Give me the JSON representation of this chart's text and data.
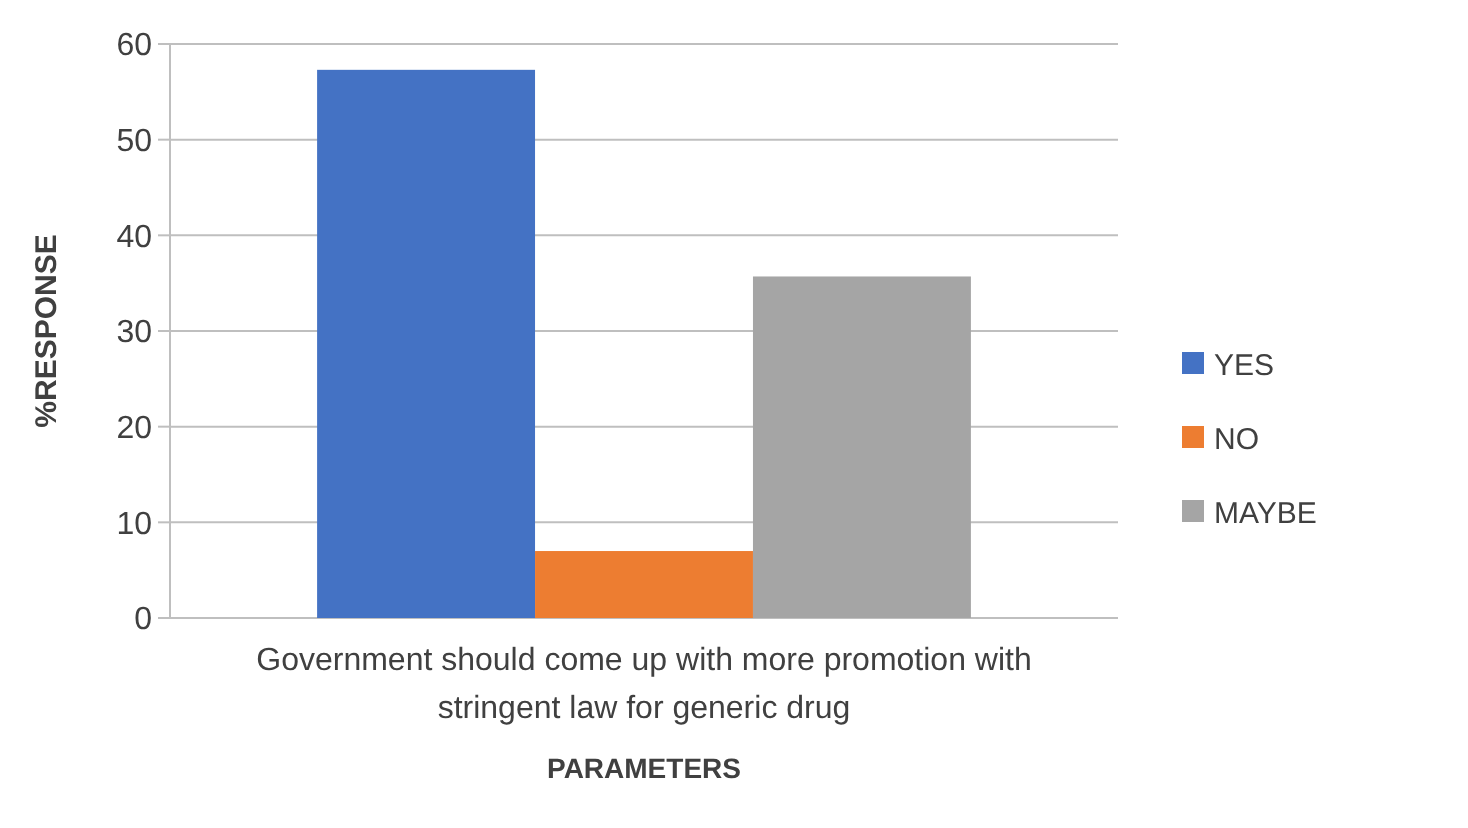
{
  "chart_data": {
    "type": "bar",
    "categories": [
      "Government should come up with more promotion with stringent law for generic drug"
    ],
    "series": [
      {
        "name": "YES",
        "color": "#4472c4",
        "values": [
          57.3
        ]
      },
      {
        "name": "NO",
        "color": "#ed7d31",
        "values": [
          7
        ]
      },
      {
        "name": "MAYBE",
        "color": "#a5a5a5",
        "values": [
          35.7
        ]
      }
    ],
    "xlabel": "PARAMETERS",
    "ylabel": "%RESPONSE",
    "ylim": [
      0,
      60
    ],
    "yticks": [
      0,
      10,
      20,
      30,
      40,
      50,
      60
    ],
    "grid": "y",
    "legend": "right"
  }
}
